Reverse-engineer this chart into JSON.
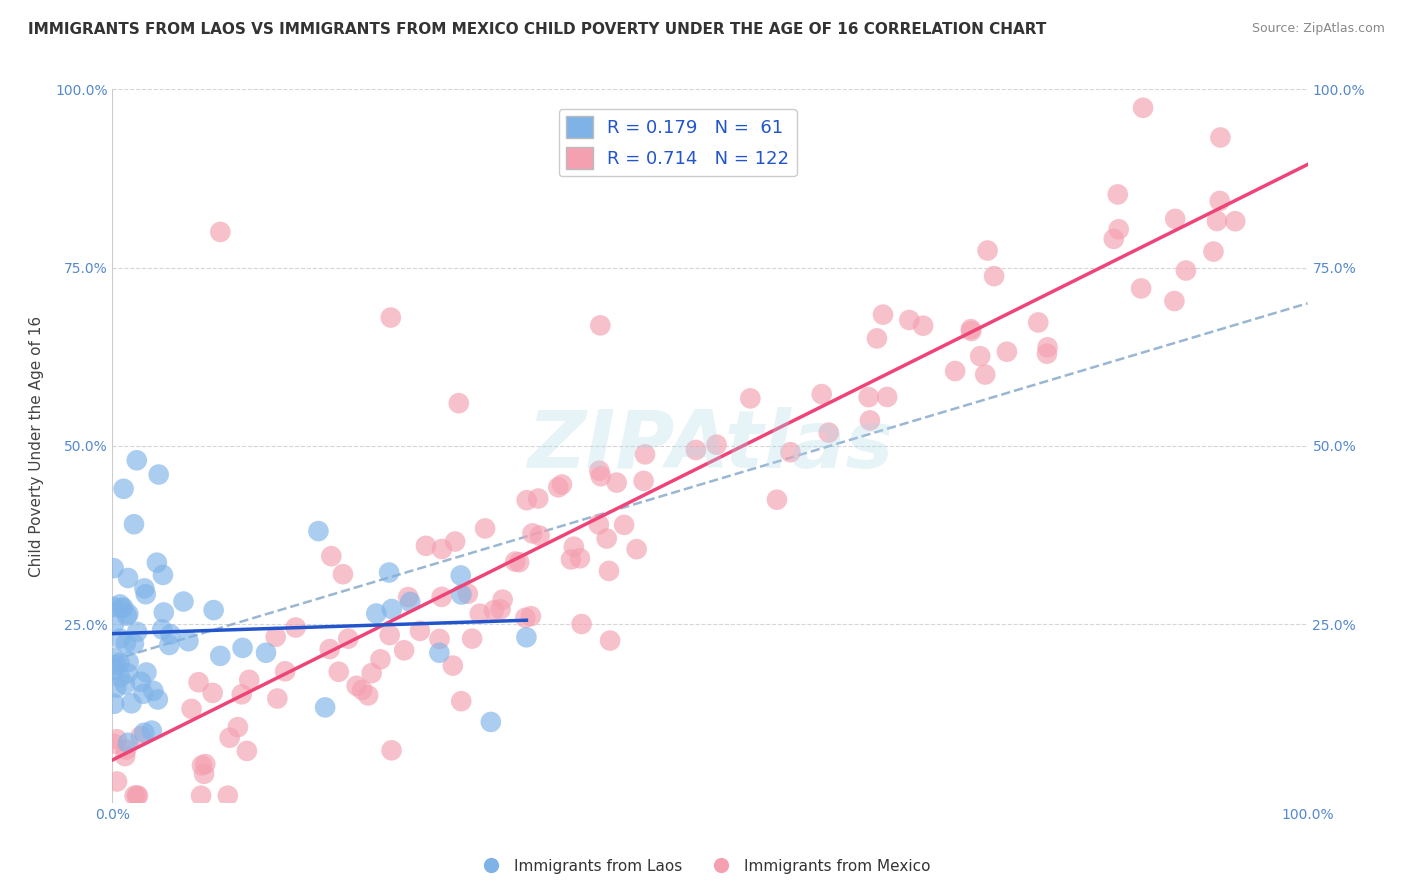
{
  "title": "IMMIGRANTS FROM LAOS VS IMMIGRANTS FROM MEXICO CHILD POVERTY UNDER THE AGE OF 16 CORRELATION CHART",
  "source": "Source: ZipAtlas.com",
  "ylabel": "Child Poverty Under the Age of 16",
  "xlim": [
    0,
    1
  ],
  "ylim": [
    0,
    1
  ],
  "laos_color": "#7FB3E8",
  "mexico_color": "#F4A0B0",
  "laos_R": 0.179,
  "laos_N": 61,
  "mexico_R": 0.714,
  "mexico_N": 122,
  "watermark_text": "ZIPAtlas",
  "watermark_color": "#ADD8E6",
  "background_color": "#ffffff",
  "grid_color": "#cccccc",
  "title_fontsize": 11,
  "axis_label_fontsize": 11,
  "tick_fontsize": 10,
  "legend_fontsize": 11,
  "laos_line_color": "#2255CC",
  "mexico_line_color": "#EE4477",
  "dashed_line_color": "#88AACC",
  "laos_line_label": "R = 0.179",
  "mexico_line_label": "R = 0.714",
  "legend1_laos": "R = 0.179   N =  61",
  "legend1_mexico": "R = 0.714   N = 122",
  "bottom_legend_laos": "Immigrants from Laos",
  "bottom_legend_mexico": "Immigrants from Mexico"
}
